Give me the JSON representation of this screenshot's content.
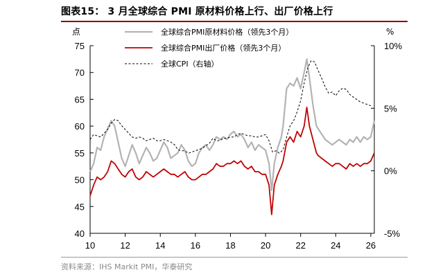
{
  "header": {
    "title": "图表15： 3 月全球综合 PMI 原材料价格上行、出厂价格上行"
  },
  "footer": {
    "source": "资料来源：IHS Markit PMI，华泰研究"
  },
  "colors": {
    "raw_material": "#b3b3b3",
    "output": "#c00000",
    "cpi": "#000000",
    "title_rule": "#8b0000"
  },
  "chart_data": {
    "type": "line",
    "title": "",
    "left_axis": {
      "label": "点",
      "ylim": [
        40,
        75
      ],
      "ticks": [
        40,
        45,
        50,
        55,
        60,
        65,
        70,
        75
      ]
    },
    "right_axis": {
      "label": "%",
      "ylim": [
        -5,
        10
      ],
      "ticks": [
        "10%",
        "5%",
        "0%",
        "-5%"
      ],
      "tick_values": [
        10,
        5,
        0,
        -5
      ]
    },
    "x_axis": {
      "xlim": [
        2010,
        2026.2
      ],
      "tick_labels": [
        "10",
        "12",
        "14",
        "16",
        "18",
        "20",
        "22",
        "24",
        "26"
      ],
      "tick_values": [
        2010,
        2012,
        2014,
        2016,
        2018,
        2020,
        2022,
        2024,
        2026
      ]
    },
    "legend_position": "top-left",
    "series": [
      {
        "name": "全球综合PMI原材料价格（领先3个月）",
        "axis": "left",
        "style": "solid",
        "points": [
          [
            2010.0,
            51.5
          ],
          [
            2010.2,
            53
          ],
          [
            2010.4,
            56
          ],
          [
            2010.6,
            55.5
          ],
          [
            2010.8,
            58
          ],
          [
            2011.0,
            59.5
          ],
          [
            2011.2,
            61
          ],
          [
            2011.4,
            60
          ],
          [
            2011.6,
            57
          ],
          [
            2011.8,
            54
          ],
          [
            2012.0,
            52.5
          ],
          [
            2012.2,
            54.5
          ],
          [
            2012.4,
            56.5
          ],
          [
            2012.6,
            55
          ],
          [
            2012.8,
            53
          ],
          [
            2013.0,
            54.5
          ],
          [
            2013.2,
            56
          ],
          [
            2013.4,
            55
          ],
          [
            2013.6,
            53.5
          ],
          [
            2013.8,
            54
          ],
          [
            2014.0,
            55.5
          ],
          [
            2014.2,
            57
          ],
          [
            2014.4,
            56
          ],
          [
            2014.6,
            54
          ],
          [
            2014.8,
            54.5
          ],
          [
            2015.0,
            55
          ],
          [
            2015.2,
            56.5
          ],
          [
            2015.4,
            55.5
          ],
          [
            2015.6,
            53.5
          ],
          [
            2015.8,
            52.5
          ],
          [
            2016.0,
            53
          ],
          [
            2016.2,
            55
          ],
          [
            2016.4,
            56
          ],
          [
            2016.6,
            56.5
          ],
          [
            2016.8,
            55.5
          ],
          [
            2017.0,
            56.5
          ],
          [
            2017.2,
            58
          ],
          [
            2017.4,
            57.5
          ],
          [
            2017.6,
            58
          ],
          [
            2017.8,
            57.5
          ],
          [
            2018.0,
            58.5
          ],
          [
            2018.2,
            59
          ],
          [
            2018.4,
            58
          ],
          [
            2018.6,
            58.5
          ],
          [
            2018.8,
            57.5
          ],
          [
            2019.0,
            56
          ],
          [
            2019.2,
            57
          ],
          [
            2019.4,
            55.5
          ],
          [
            2019.6,
            56.5
          ],
          [
            2019.8,
            56
          ],
          [
            2020.0,
            55.5
          ],
          [
            2020.2,
            53
          ],
          [
            2020.35,
            48
          ],
          [
            2020.5,
            53
          ],
          [
            2020.7,
            56
          ],
          [
            2020.9,
            58
          ],
          [
            2021.0,
            60
          ],
          [
            2021.2,
            67
          ],
          [
            2021.4,
            68
          ],
          [
            2021.6,
            67.5
          ],
          [
            2021.8,
            69
          ],
          [
            2022.0,
            67
          ],
          [
            2022.2,
            70
          ],
          [
            2022.35,
            72.5
          ],
          [
            2022.5,
            69
          ],
          [
            2022.7,
            64
          ],
          [
            2022.9,
            60
          ],
          [
            2023.0,
            59.5
          ],
          [
            2023.2,
            58.5
          ],
          [
            2023.4,
            57.5
          ],
          [
            2023.6,
            57
          ],
          [
            2023.8,
            56.5
          ],
          [
            2024.0,
            57
          ],
          [
            2024.2,
            57.5
          ],
          [
            2024.4,
            57
          ],
          [
            2024.6,
            56.5
          ],
          [
            2024.8,
            57.5
          ],
          [
            2025.0,
            57
          ],
          [
            2025.2,
            58
          ],
          [
            2025.4,
            57
          ],
          [
            2025.6,
            58
          ],
          [
            2025.8,
            57.5
          ],
          [
            2026.0,
            58
          ],
          [
            2026.2,
            61
          ]
        ]
      },
      {
        "name": "全球综合PMI出厂价格（领先3个月）",
        "axis": "left",
        "style": "solid",
        "points": [
          [
            2010.0,
            47
          ],
          [
            2010.2,
            49
          ],
          [
            2010.4,
            50.5
          ],
          [
            2010.6,
            50
          ],
          [
            2010.8,
            50.5
          ],
          [
            2011.0,
            51.5
          ],
          [
            2011.2,
            53.5
          ],
          [
            2011.4,
            53
          ],
          [
            2011.6,
            52
          ],
          [
            2011.8,
            51
          ],
          [
            2012.0,
            50.5
          ],
          [
            2012.2,
            51.5
          ],
          [
            2012.4,
            52
          ],
          [
            2012.6,
            50.5
          ],
          [
            2012.8,
            50
          ],
          [
            2013.0,
            50.5
          ],
          [
            2013.2,
            51.5
          ],
          [
            2013.4,
            51
          ],
          [
            2013.6,
            50.5
          ],
          [
            2013.8,
            51
          ],
          [
            2014.0,
            51.5
          ],
          [
            2014.2,
            52
          ],
          [
            2014.4,
            51.5
          ],
          [
            2014.6,
            51
          ],
          [
            2014.8,
            51
          ],
          [
            2015.0,
            50.5
          ],
          [
            2015.2,
            51
          ],
          [
            2015.4,
            51.5
          ],
          [
            2015.6,
            50.5
          ],
          [
            2015.8,
            50
          ],
          [
            2016.0,
            50
          ],
          [
            2016.2,
            50.5
          ],
          [
            2016.4,
            51
          ],
          [
            2016.6,
            51
          ],
          [
            2016.8,
            51.5
          ],
          [
            2017.0,
            52
          ],
          [
            2017.2,
            53
          ],
          [
            2017.4,
            52.5
          ],
          [
            2017.6,
            52.5
          ],
          [
            2017.8,
            53
          ],
          [
            2018.0,
            53
          ],
          [
            2018.2,
            53.5
          ],
          [
            2018.4,
            53
          ],
          [
            2018.6,
            53.5
          ],
          [
            2018.8,
            52.5
          ],
          [
            2019.0,
            52
          ],
          [
            2019.2,
            52.5
          ],
          [
            2019.4,
            51.5
          ],
          [
            2019.6,
            51.5
          ],
          [
            2019.8,
            51
          ],
          [
            2020.0,
            51
          ],
          [
            2020.2,
            49
          ],
          [
            2020.35,
            43.5
          ],
          [
            2020.5,
            49
          ],
          [
            2020.7,
            51
          ],
          [
            2020.9,
            52.5
          ],
          [
            2021.0,
            53.5
          ],
          [
            2021.2,
            57
          ],
          [
            2021.4,
            58
          ],
          [
            2021.6,
            57
          ],
          [
            2021.8,
            59
          ],
          [
            2022.0,
            58
          ],
          [
            2022.2,
            60
          ],
          [
            2022.35,
            63.5
          ],
          [
            2022.5,
            60
          ],
          [
            2022.7,
            57.5
          ],
          [
            2022.9,
            55
          ],
          [
            2023.0,
            54.5
          ],
          [
            2023.2,
            54
          ],
          [
            2023.4,
            53.5
          ],
          [
            2023.6,
            53
          ],
          [
            2023.8,
            52.5
          ],
          [
            2024.0,
            53
          ],
          [
            2024.2,
            53
          ],
          [
            2024.4,
            52.5
          ],
          [
            2024.6,
            52
          ],
          [
            2024.8,
            53
          ],
          [
            2025.0,
            52.5
          ],
          [
            2025.2,
            53
          ],
          [
            2025.4,
            52.5
          ],
          [
            2025.6,
            53
          ],
          [
            2025.8,
            53
          ],
          [
            2026.0,
            53.5
          ],
          [
            2026.2,
            55
          ]
        ]
      },
      {
        "name": "全球CPI（右轴）",
        "axis": "right",
        "style": "dashed",
        "points": [
          [
            2010.0,
            2.5
          ],
          [
            2010.2,
            2.9
          ],
          [
            2010.4,
            2.8
          ],
          [
            2010.6,
            2.7
          ],
          [
            2010.8,
            3.0
          ],
          [
            2011.0,
            3.3
          ],
          [
            2011.2,
            3.8
          ],
          [
            2011.4,
            4.1
          ],
          [
            2011.6,
            4.0
          ],
          [
            2011.8,
            3.6
          ],
          [
            2012.0,
            3.3
          ],
          [
            2012.2,
            3.0
          ],
          [
            2012.4,
            2.7
          ],
          [
            2012.6,
            2.6
          ],
          [
            2012.8,
            2.7
          ],
          [
            2013.0,
            2.6
          ],
          [
            2013.2,
            2.4
          ],
          [
            2013.4,
            2.5
          ],
          [
            2013.6,
            2.6
          ],
          [
            2013.8,
            2.4
          ],
          [
            2014.0,
            2.4
          ],
          [
            2014.2,
            2.5
          ],
          [
            2014.4,
            2.4
          ],
          [
            2014.6,
            2.3
          ],
          [
            2014.8,
            2.1
          ],
          [
            2015.0,
            1.7
          ],
          [
            2015.2,
            1.6
          ],
          [
            2015.4,
            1.6
          ],
          [
            2015.6,
            1.4
          ],
          [
            2015.8,
            1.5
          ],
          [
            2016.0,
            1.6
          ],
          [
            2016.2,
            1.7
          ],
          [
            2016.4,
            1.8
          ],
          [
            2016.6,
            2.0
          ],
          [
            2016.8,
            2.2
          ],
          [
            2017.0,
            2.6
          ],
          [
            2017.2,
            2.4
          ],
          [
            2017.4,
            2.4
          ],
          [
            2017.6,
            2.6
          ],
          [
            2017.8,
            2.6
          ],
          [
            2018.0,
            2.7
          ],
          [
            2018.2,
            2.7
          ],
          [
            2018.4,
            2.9
          ],
          [
            2018.6,
            3.0
          ],
          [
            2018.8,
            2.9
          ],
          [
            2019.0,
            2.8
          ],
          [
            2019.2,
            2.8
          ],
          [
            2019.4,
            2.7
          ],
          [
            2019.6,
            2.7
          ],
          [
            2019.8,
            2.8
          ],
          [
            2020.0,
            2.9
          ],
          [
            2020.2,
            2.4
          ],
          [
            2020.4,
            1.5
          ],
          [
            2020.6,
            1.6
          ],
          [
            2020.8,
            1.4
          ],
          [
            2021.0,
            1.7
          ],
          [
            2021.2,
            2.7
          ],
          [
            2021.4,
            3.6
          ],
          [
            2021.6,
            4.0
          ],
          [
            2021.8,
            4.7
          ],
          [
            2022.0,
            5.6
          ],
          [
            2022.2,
            7.0
          ],
          [
            2022.4,
            8.2
          ],
          [
            2022.6,
            8.8
          ],
          [
            2022.8,
            8.7
          ],
          [
            2023.0,
            8.0
          ],
          [
            2023.2,
            7.4
          ],
          [
            2023.4,
            6.7
          ],
          [
            2023.6,
            6.2
          ],
          [
            2023.8,
            6.3
          ],
          [
            2024.0,
            6.0
          ],
          [
            2024.2,
            6.4
          ],
          [
            2024.4,
            6.6
          ],
          [
            2024.6,
            6.5
          ],
          [
            2024.8,
            6.1
          ],
          [
            2025.0,
            5.9
          ],
          [
            2025.2,
            5.7
          ],
          [
            2025.4,
            5.5
          ],
          [
            2025.6,
            5.4
          ],
          [
            2025.8,
            5.3
          ],
          [
            2026.0,
            5.2
          ]
        ]
      }
    ]
  }
}
